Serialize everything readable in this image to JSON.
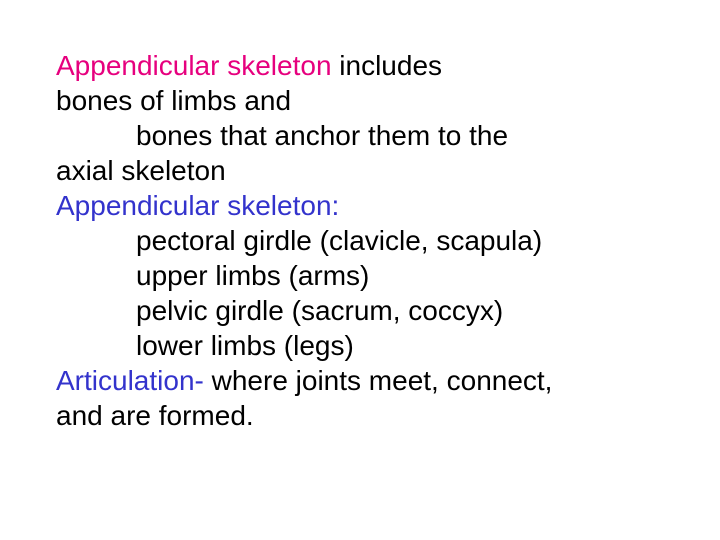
{
  "slide": {
    "background_color": "#ffffff",
    "font_family": "Arial",
    "font_size": 28,
    "colors": {
      "heading": "#e6007e",
      "subhead": "#3333cc",
      "body": "#000000"
    },
    "lines": {
      "l1_a": "Appendicular skeleton ",
      "l1_b": "includes",
      "l2": "bones of limbs and",
      "l3": "bones that anchor them to the",
      "l4": "axial skeleton",
      "l5": "Appendicular skeleton:",
      "l6": "pectoral girdle (clavicle, scapula)",
      "l7": "upper limbs (arms)",
      "l8": "pelvic girdle (sacrum, coccyx)",
      "l9": "lower limbs (legs)",
      "l10_a": "Articulation- ",
      "l10_b": "where joints meet, connect,",
      "l11": "and are formed."
    }
  }
}
